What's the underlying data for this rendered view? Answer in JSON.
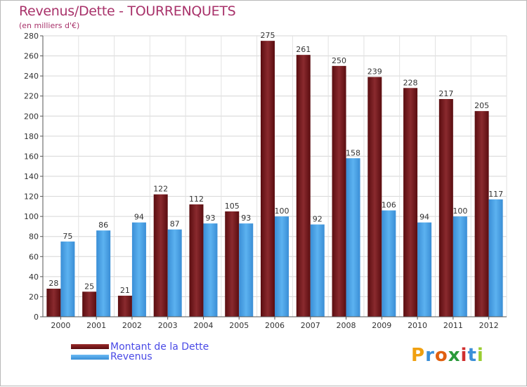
{
  "chart_data": {
    "type": "bar",
    "title": "Revenus/Dette - TOURRENQUETS",
    "subtitle": "(en milliers d'€)",
    "categories": [
      "2000",
      "2001",
      "2002",
      "2003",
      "2004",
      "2005",
      "2006",
      "2007",
      "2008",
      "2009",
      "2010",
      "2011",
      "2012"
    ],
    "series": [
      {
        "name": "Montant de la Dette",
        "color": "#7a1a1a",
        "values": [
          28,
          25,
          21,
          122,
          112,
          105,
          275,
          261,
          250,
          239,
          228,
          217,
          205
        ]
      },
      {
        "name": "Revenus",
        "color": "#4aa6ea",
        "values": [
          75,
          86,
          94,
          87,
          93,
          93,
          100,
          92,
          158,
          106,
          94,
          100,
          117
        ]
      }
    ],
    "ylim": [
      0,
      280
    ],
    "yticks": [
      0,
      20,
      40,
      60,
      80,
      100,
      120,
      140,
      160,
      180,
      200,
      220,
      240,
      260,
      280
    ],
    "grid": true,
    "legend_position": "bottom-left"
  },
  "logo": {
    "text": "Proxiti",
    "letter_colors": [
      "#f0a010",
      "#3b8fd8",
      "#e06010",
      "#2a9a3a",
      "#d03030",
      "#3b8fd8",
      "#9acd32"
    ]
  }
}
